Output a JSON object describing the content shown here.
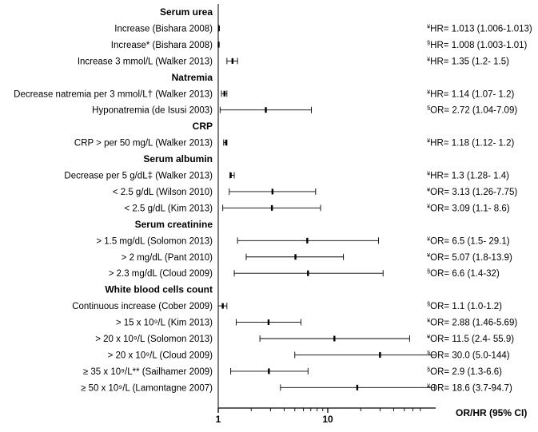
{
  "chart_data": {
    "type": "forest",
    "xlabel": "OR/HR (95% CI)",
    "xscale": "log",
    "xlim": [
      1,
      70
    ],
    "ticks": [
      {
        "value": 1,
        "label": "1"
      },
      {
        "value": 10,
        "label": "10"
      }
    ],
    "rows": [
      {
        "kind": "header",
        "label": "Serum urea"
      },
      {
        "kind": "item",
        "label": "Increase (Bishara 2008)",
        "est": 1.013,
        "lo": 1.006,
        "hi": 1.013,
        "sym": "¥",
        "text": "HR= 1.013 (1.006-1.013)"
      },
      {
        "kind": "item",
        "label": "Increase* (Bishara 2008)",
        "est": 1.008,
        "lo": 1.003,
        "hi": 1.01,
        "sym": "§",
        "text": "HR= 1.008 (1.003-1.01)"
      },
      {
        "kind": "item",
        "label": "Increase 3 mmol/L (Walker 2013)",
        "est": 1.35,
        "lo": 1.2,
        "hi": 1.5,
        "sym": "¥",
        "text": "HR= 1.35 (1.2- 1.5)"
      },
      {
        "kind": "header",
        "label": "Natremia"
      },
      {
        "kind": "item",
        "label": "Decrease natremia per 3 mmol/L†",
        "label_suffix": " (Walker 2013)",
        "est": 1.14,
        "lo": 1.07,
        "hi": 1.2,
        "sym": "¥",
        "text": "HR= 1.14 (1.07- 1.2)"
      },
      {
        "kind": "item",
        "label": "Hyponatremia (de Isusi 2003)",
        "est": 2.72,
        "lo": 1.04,
        "hi": 7.09,
        "sym": "§",
        "text": "OR= 2.72 (1.04-7.09)"
      },
      {
        "kind": "header",
        "label": "CRP"
      },
      {
        "kind": "item",
        "label": "CRP > per 50 mg/L (Walker 2013)",
        "est": 1.18,
        "lo": 1.12,
        "hi": 1.2,
        "sym": "¥",
        "text": "HR= 1.18 (1.12- 1.2)"
      },
      {
        "kind": "header",
        "label": "Serum albumin"
      },
      {
        "kind": "item",
        "label": "Decrease per 5 g/dL‡",
        "label_suffix": " (Walker 2013)",
        "est": 1.3,
        "lo": 1.28,
        "hi": 1.4,
        "sym": "¥",
        "text": "HR= 1.3 (1.28- 1.4)"
      },
      {
        "kind": "item",
        "label": "< 2.5 g/dL (Wilson 2010)",
        "est": 3.13,
        "lo": 1.26,
        "hi": 7.75,
        "sym": "¥",
        "text": "OR= 3.13 (1.26-7.75)"
      },
      {
        "kind": "item",
        "label": "< 2.5 g/dL (Kim 2013)",
        "est": 3.09,
        "lo": 1.1,
        "hi": 8.6,
        "sym": "¥",
        "text": "OR= 3.09 (1.1- 8.6)"
      },
      {
        "kind": "header",
        "label": "Serum creatinine"
      },
      {
        "kind": "item",
        "label": "> 1.5 mg/dL (Solomon 2013)",
        "est": 6.5,
        "lo": 1.5,
        "hi": 29.1,
        "sym": "¥",
        "text": "OR= 6.5 (1.5- 29.1)"
      },
      {
        "kind": "item",
        "label": "> 2 mg/dL (Pant 2010)",
        "est": 5.07,
        "lo": 1.8,
        "hi": 13.9,
        "sym": "¥",
        "text": "OR= 5.07 (1.8-13.9)"
      },
      {
        "kind": "item",
        "label": "> 2.3 mg/dL (Cloud 2009)",
        "est": 6.6,
        "lo": 1.4,
        "hi": 32,
        "sym": "§",
        "text": "OR= 6.6 (1.4-32)"
      },
      {
        "kind": "header",
        "label": "White blood cells count"
      },
      {
        "kind": "item",
        "label": "Continuous increase (Cober 2009)",
        "est": 1.1,
        "lo": 1.0,
        "hi": 1.2,
        "sym": "§",
        "text": "OR= 1.1 (1.0-1.2)"
      },
      {
        "kind": "item",
        "label": "> 15 x 10⁹/L (Kim 2013)",
        "est": 2.88,
        "lo": 1.46,
        "hi": 5.69,
        "sym": "¥",
        "text": "OR= 2.88 (1.46-5.69)"
      },
      {
        "kind": "item",
        "label": "> 20 x 10⁹/L (Solomon 2013)",
        "est": 11.5,
        "lo": 2.4,
        "hi": 55.9,
        "sym": "¥",
        "text": "OR= 11.5 (2.4- 55.9)"
      },
      {
        "kind": "item",
        "label": "> 20 x 10⁹/L (Cloud 2009)",
        "est": 30.0,
        "lo": 5.0,
        "hi": 144,
        "sym": "§",
        "text": "OR= 30.0 (5.0-144)"
      },
      {
        "kind": "item",
        "label": "≥ 35 x 10⁹/L** (Sailhamer 2009)",
        "est": 2.9,
        "lo": 1.3,
        "hi": 6.6,
        "sym": "§",
        "text": "OR= 2.9 (1.3-6.6)"
      },
      {
        "kind": "item",
        "label": "≥ 50 x 10⁹/L (Lamontagne 2007)",
        "est": 18.6,
        "lo": 3.7,
        "hi": 94.7,
        "sym": "¥",
        "text": "OR= 18.6 (3.7-94.7)"
      }
    ]
  }
}
